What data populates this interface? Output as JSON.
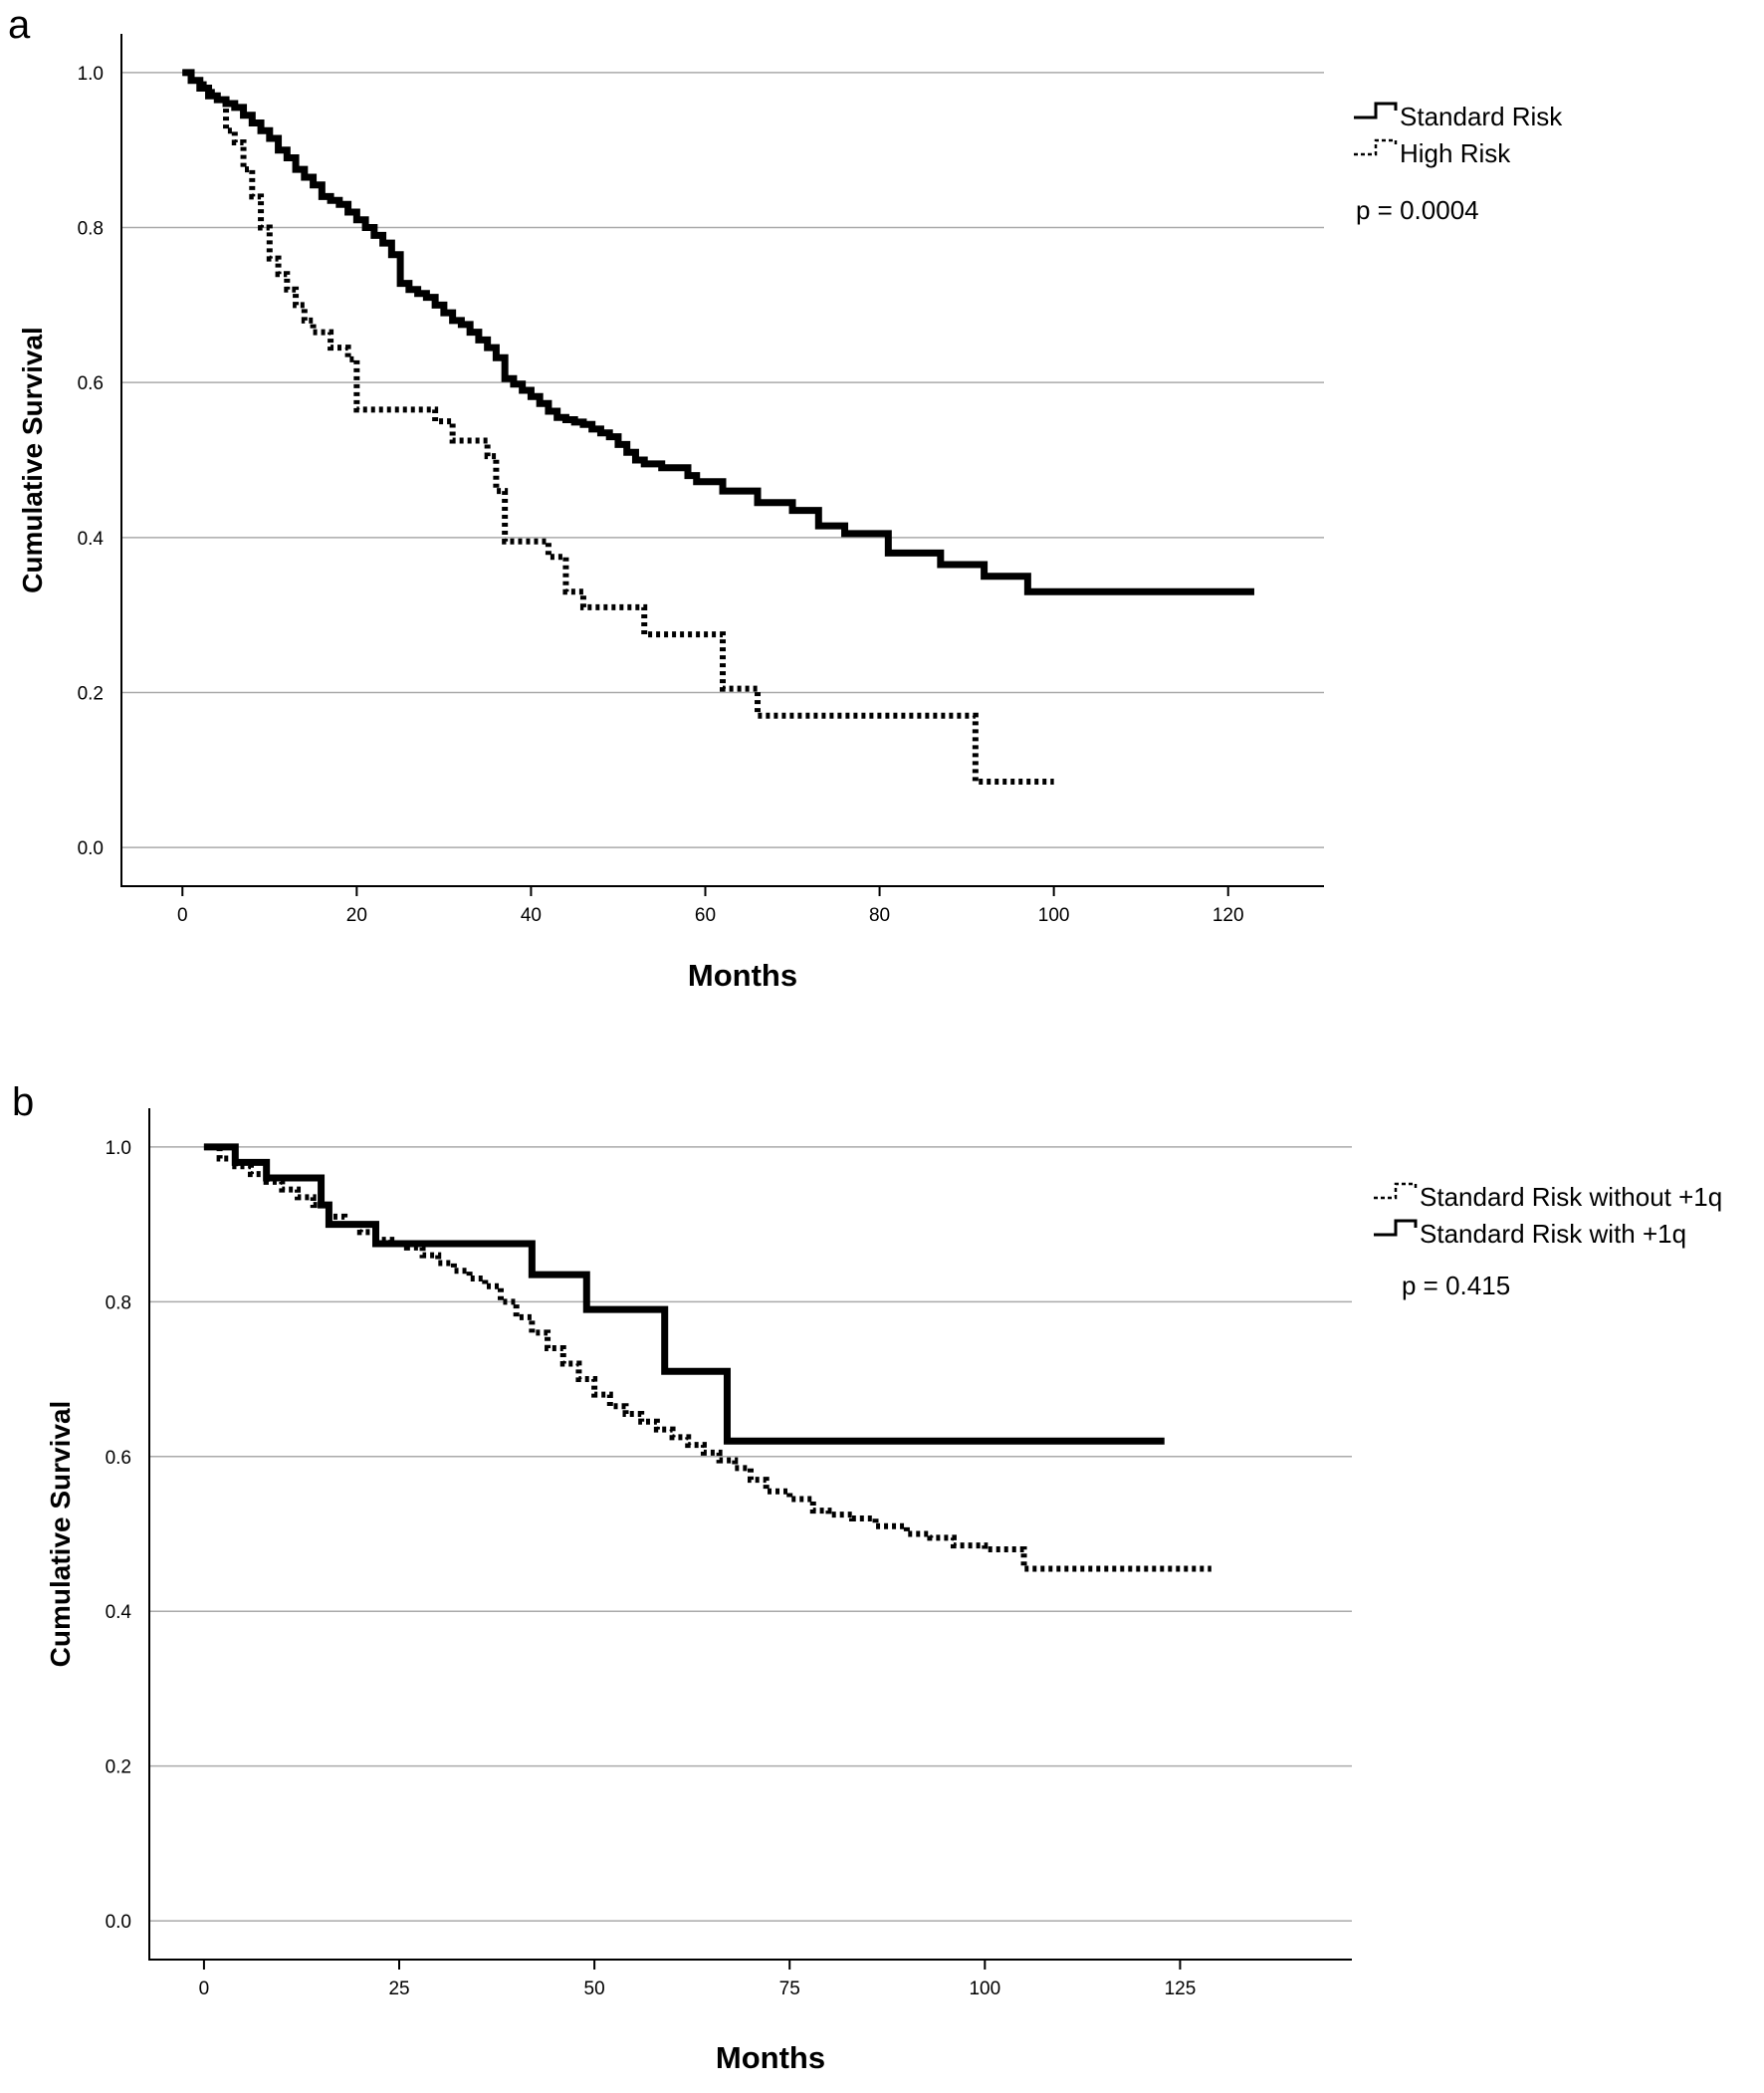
{
  "chart_data": [
    {
      "panel_label": "a",
      "type": "line",
      "step": true,
      "xlabel": "Months",
      "ylabel": "Cumulative Survival",
      "xlim": [
        -7,
        131
      ],
      "ylim": [
        -0.05,
        1.05
      ],
      "xticks": [
        0,
        20,
        40,
        60,
        80,
        100,
        120
      ],
      "yticks": [
        "0.0",
        "0.2",
        "0.4",
        "0.6",
        "0.8",
        "1.0"
      ],
      "grid": "horizontal",
      "legend": {
        "position": "right",
        "entries": [
          "Standard Risk",
          "High Risk"
        ]
      },
      "annotation": "p = 0.0004",
      "series": [
        {
          "name": "Standard Risk",
          "style": "solid",
          "x": [
            0,
            1,
            2,
            3,
            4,
            5,
            6,
            7,
            8,
            9,
            10,
            11,
            12,
            13,
            14,
            15,
            16,
            17,
            18,
            19,
            20,
            21,
            22,
            23,
            24,
            25,
            26,
            27,
            28,
            29,
            30,
            31,
            32,
            33,
            34,
            35,
            36,
            37,
            38,
            39,
            40,
            41,
            42,
            43,
            44,
            45,
            46,
            47,
            48,
            49,
            50,
            51,
            52,
            53,
            55,
            58,
            59,
            62,
            66,
            70,
            73,
            76,
            81,
            87,
            92,
            97,
            123
          ],
          "y": [
            1.0,
            0.99,
            0.98,
            0.97,
            0.965,
            0.96,
            0.955,
            0.945,
            0.935,
            0.925,
            0.915,
            0.9,
            0.89,
            0.875,
            0.865,
            0.855,
            0.84,
            0.835,
            0.83,
            0.82,
            0.81,
            0.8,
            0.79,
            0.78,
            0.765,
            0.728,
            0.72,
            0.715,
            0.71,
            0.7,
            0.69,
            0.68,
            0.675,
            0.665,
            0.655,
            0.645,
            0.632,
            0.605,
            0.598,
            0.59,
            0.582,
            0.573,
            0.563,
            0.555,
            0.552,
            0.549,
            0.546,
            0.54,
            0.535,
            0.53,
            0.52,
            0.51,
            0.5,
            0.495,
            0.49,
            0.48,
            0.472,
            0.46,
            0.445,
            0.435,
            0.415,
            0.405,
            0.38,
            0.365,
            0.35,
            0.33,
            0.33
          ]
        },
        {
          "name": "High Risk",
          "style": "dotted",
          "x": [
            0,
            1,
            2,
            3,
            4,
            5,
            6,
            7,
            8,
            9,
            10,
            11,
            12,
            13,
            14,
            15,
            17,
            19,
            20,
            29,
            31,
            35,
            36,
            37,
            42,
            44,
            46,
            53,
            62,
            66,
            91,
            100
          ],
          "y": [
            1.0,
            0.99,
            0.985,
            0.975,
            0.965,
            0.925,
            0.91,
            0.875,
            0.84,
            0.8,
            0.76,
            0.74,
            0.72,
            0.7,
            0.68,
            0.665,
            0.645,
            0.63,
            0.565,
            0.55,
            0.525,
            0.505,
            0.46,
            0.395,
            0.375,
            0.33,
            0.31,
            0.275,
            0.205,
            0.17,
            0.085,
            0.085
          ]
        }
      ]
    },
    {
      "panel_label": "b",
      "type": "line",
      "step": true,
      "xlabel": "Months",
      "ylabel": "Cumulative Survival",
      "xlim": [
        -7,
        147
      ],
      "ylim": [
        -0.05,
        1.05
      ],
      "xticks": [
        0,
        25,
        50,
        75,
        100,
        125
      ],
      "yticks": [
        "0.0",
        "0.2",
        "0.4",
        "0.6",
        "0.8",
        "1.0"
      ],
      "grid": "horizontal",
      "legend": {
        "position": "right",
        "entries": [
          "Standard Risk without +1q",
          "Standard Risk with +1q"
        ]
      },
      "annotation": "p = 0.415",
      "series": [
        {
          "name": "Standard Risk without +1q",
          "style": "dotted",
          "x": [
            0,
            2,
            4,
            6,
            8,
            10,
            12,
            14,
            16,
            18,
            20,
            22,
            24,
            26,
            28,
            30,
            32,
            34,
            36,
            38,
            40,
            42,
            44,
            46,
            48,
            50,
            52,
            54,
            56,
            58,
            60,
            62,
            64,
            66,
            68,
            70,
            72,
            75,
            78,
            80,
            83,
            86,
            90,
            93,
            96,
            100,
            105,
            129
          ],
          "y": [
            1.0,
            0.985,
            0.975,
            0.965,
            0.955,
            0.945,
            0.935,
            0.925,
            0.91,
            0.9,
            0.89,
            0.88,
            0.875,
            0.87,
            0.86,
            0.85,
            0.84,
            0.83,
            0.82,
            0.8,
            0.78,
            0.76,
            0.74,
            0.72,
            0.7,
            0.68,
            0.665,
            0.655,
            0.645,
            0.635,
            0.625,
            0.615,
            0.605,
            0.595,
            0.585,
            0.57,
            0.555,
            0.545,
            0.53,
            0.525,
            0.52,
            0.51,
            0.5,
            0.495,
            0.485,
            0.48,
            0.455,
            0.455
          ]
        },
        {
          "name": "Standard Risk with +1q",
          "style": "solid",
          "x": [
            0,
            4,
            8,
            15,
            16,
            22,
            42,
            49,
            59,
            67,
            123
          ],
          "y": [
            1.0,
            0.98,
            0.96,
            0.925,
            0.9,
            0.875,
            0.835,
            0.79,
            0.71,
            0.62,
            0.62
          ]
        }
      ]
    }
  ]
}
